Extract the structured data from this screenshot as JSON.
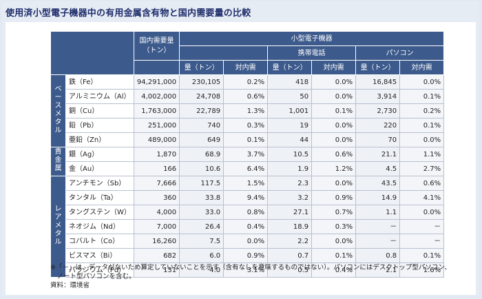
{
  "title": "使用済小型電子機器中の有用金属含有物と国内需要量の比較",
  "header": {
    "domestic_demand": [
      "国内需要量",
      "（トン）"
    ],
    "small_devices": "小型電子機器",
    "mobile": "携帯電話",
    "pc": "パソコン",
    "amount": "量（トン）",
    "ratio": "対内需"
  },
  "groups": [
    {
      "label": "ベースメタル",
      "rows": [
        {
          "name": "鉄（Fe）",
          "demand": "94,291,000",
          "all_amt": "230,105",
          "all_ratio": "0.2%",
          "mob_amt": "418",
          "mob_ratio": "0.0%",
          "pc_amt": "16,845",
          "pc_ratio": "0.0%"
        },
        {
          "name": "アルミニウム（Al）",
          "demand": "4,002,000",
          "all_amt": "24,708",
          "all_ratio": "0.6%",
          "mob_amt": "50",
          "mob_ratio": "0.0%",
          "pc_amt": "3,914",
          "pc_ratio": "0.1%"
        },
        {
          "name": "銅（Cu）",
          "demand": "1,763,000",
          "all_amt": "22,789",
          "all_ratio": "1.3%",
          "mob_amt": "1,001",
          "mob_ratio": "0.1%",
          "pc_amt": "2,730",
          "pc_ratio": "0.2%"
        },
        {
          "name": "鉛（Pb）",
          "demand": "251,000",
          "all_amt": "740",
          "all_ratio": "0.3%",
          "mob_amt": "19",
          "mob_ratio": "0.0%",
          "pc_amt": "220",
          "pc_ratio": "0.1%"
        },
        {
          "name": "亜鉛（Zn）",
          "demand": "489,000",
          "all_amt": "649",
          "all_ratio": "0.1%",
          "mob_amt": "44",
          "mob_ratio": "0.0%",
          "pc_amt": "70",
          "pc_ratio": "0.0%"
        }
      ]
    },
    {
      "label": "貴金属",
      "rows": [
        {
          "name": "銀（Ag）",
          "demand": "1,870",
          "all_amt": "68.9",
          "all_ratio": "3.7%",
          "mob_amt": "10.5",
          "mob_ratio": "0.6%",
          "pc_amt": "21.1",
          "pc_ratio": "1.1%"
        },
        {
          "name": "金（Au）",
          "demand": "166",
          "all_amt": "10.6",
          "all_ratio": "6.4%",
          "mob_amt": "1.9",
          "mob_ratio": "1.2%",
          "pc_amt": "4.5",
          "pc_ratio": "2.7%"
        }
      ]
    },
    {
      "label": "レアメタル",
      "rows": [
        {
          "name": "アンチモン（Sb）",
          "demand": "7,666",
          "all_amt": "117.5",
          "all_ratio": "1.5%",
          "mob_amt": "2.3",
          "mob_ratio": "0.0%",
          "pc_amt": "43.5",
          "pc_ratio": "0.6%"
        },
        {
          "name": "タンタル（Ta）",
          "demand": "360",
          "all_amt": "33.8",
          "all_ratio": "9.4%",
          "mob_amt": "3.2",
          "mob_ratio": "0.9%",
          "pc_amt": "14.9",
          "pc_ratio": "4.1%"
        },
        {
          "name": "タングステン（W）",
          "demand": "4,000",
          "all_amt": "33.0",
          "all_ratio": "0.8%",
          "mob_amt": "27.1",
          "mob_ratio": "0.7%",
          "pc_amt": "1.1",
          "pc_ratio": "0.0%"
        },
        {
          "name": "ネオジム（Nd）",
          "demand": "7,000",
          "all_amt": "26.4",
          "all_ratio": "0.4%",
          "mob_amt": "18.9",
          "mob_ratio": "0.3%",
          "pc_amt": "－",
          "pc_ratio": "－"
        },
        {
          "name": "コバルト（Co）",
          "demand": "16,260",
          "all_amt": "7.5",
          "all_ratio": "0.0%",
          "mob_amt": "2.2",
          "mob_ratio": "0.0%",
          "pc_amt": "－",
          "pc_ratio": "－"
        },
        {
          "name": "ビスマス（Bi）",
          "demand": "682",
          "all_amt": "6.0",
          "all_ratio": "0.9%",
          "mob_amt": "0.7",
          "mob_ratio": "0.1%",
          "pc_amt": "0.8",
          "pc_ratio": "0.1%"
        },
        {
          "name": "パラジウム（Pd）",
          "demand": "131",
          "all_amt": "4.0",
          "all_ratio": "3.1%",
          "mob_amt": "0.5",
          "mob_ratio": "0.4%",
          "pc_amt": "2.1",
          "pc_ratio": "1.6%"
        }
      ]
    }
  ],
  "notes": [
    "※「－」は、データがないため算定していないことを示す（含有なしを意味するものではない）。パソコンにはデスクトップ型パソコン、",
    "　ノート型パソコンを含む。",
    "資料：環境省"
  ],
  "colors": {
    "header_bg": "#3c5a8c",
    "cell_bg": "#eef1f6",
    "title": "#1f2d6b"
  }
}
